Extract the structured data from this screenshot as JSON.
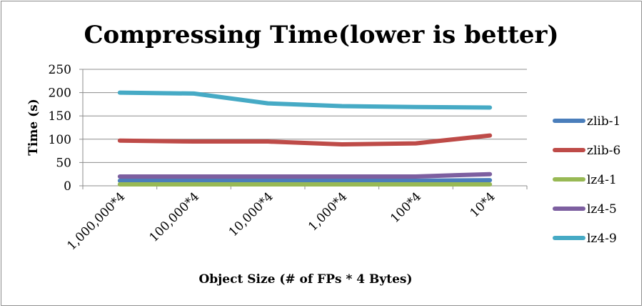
{
  "chart_data": {
    "type": "line",
    "title": "Compressing Time(lower is better)",
    "xlabel": "Object Size (# of FPs * 4 Bytes)",
    "ylabel": "Time (s)",
    "categories": [
      "1,000,000*4",
      "100,000*4",
      "10,000*4",
      "1,000*4",
      "100*4",
      "10*4"
    ],
    "ylim": [
      0,
      250
    ],
    "yticks": [
      0,
      50,
      100,
      150,
      200,
      250
    ],
    "grid": true,
    "legend_position": "right",
    "series": [
      {
        "name": "zlib-1",
        "color": "#4a7ebb",
        "values": [
          11,
          11,
          11,
          11,
          11,
          12
        ]
      },
      {
        "name": "zlib-6",
        "color": "#be4b48",
        "values": [
          97,
          95,
          95,
          89,
          91,
          108
        ]
      },
      {
        "name": "lz4-1",
        "color": "#98b954",
        "values": [
          3,
          3,
          3,
          3,
          3,
          3
        ]
      },
      {
        "name": "lz4-5",
        "color": "#7d5fa0",
        "values": [
          20,
          20,
          20,
          20,
          20,
          25
        ]
      },
      {
        "name": "lz4-9",
        "color": "#46aac5",
        "values": [
          200,
          198,
          177,
          171,
          169,
          168
        ]
      }
    ]
  }
}
